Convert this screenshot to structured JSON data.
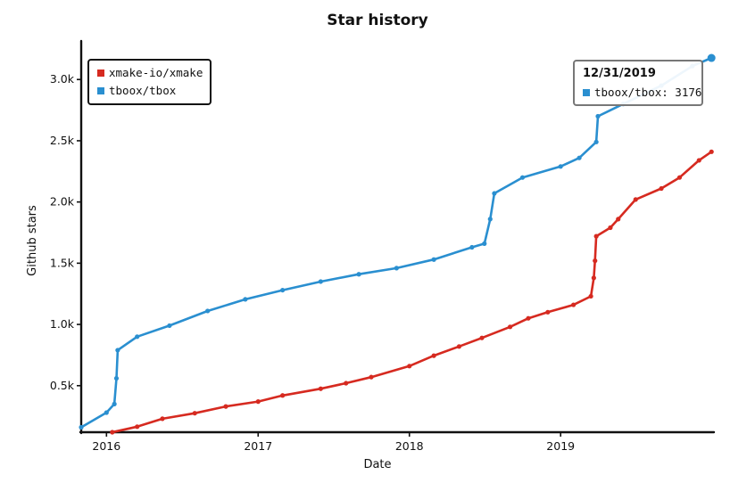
{
  "chart_data": {
    "type": "line",
    "title": "Star history",
    "xlabel": "Date",
    "ylabel": "Github stars",
    "x_ticks": [
      "2016",
      "2017",
      "2018",
      "2019"
    ],
    "y_ticks": [
      "0.5k",
      "1.0k",
      "1.5k",
      "2.0k",
      "2.5k",
      "3.0k"
    ],
    "xlim": [
      "2015-11-01",
      "2020-01-06"
    ],
    "ylim": [
      120,
      3300
    ],
    "legend_position": "top-left",
    "grid": false,
    "series": [
      {
        "name": "xmake-io/xmake",
        "color": "#d62a20",
        "points": [
          [
            "2016-01-15",
            120
          ],
          [
            "2016-03-15",
            165
          ],
          [
            "2016-05-15",
            230
          ],
          [
            "2016-08-01",
            275
          ],
          [
            "2016-10-15",
            330
          ],
          [
            "2017-01-01",
            370
          ],
          [
            "2017-03-01",
            420
          ],
          [
            "2017-06-01",
            475
          ],
          [
            "2017-08-01",
            520
          ],
          [
            "2017-10-01",
            570
          ],
          [
            "2018-01-01",
            660
          ],
          [
            "2018-03-01",
            745
          ],
          [
            "2018-05-01",
            820
          ],
          [
            "2018-06-25",
            890
          ],
          [
            "2018-09-01",
            980
          ],
          [
            "2018-10-15",
            1050
          ],
          [
            "2018-12-01",
            1100
          ],
          [
            "2019-02-01",
            1160
          ],
          [
            "2019-03-15",
            1230
          ],
          [
            "2019-03-22",
            1380
          ],
          [
            "2019-03-25",
            1520
          ],
          [
            "2019-03-28",
            1720
          ],
          [
            "2019-05-01",
            1790
          ],
          [
            "2019-05-20",
            1860
          ],
          [
            "2019-07-01",
            2020
          ],
          [
            "2019-09-01",
            2110
          ],
          [
            "2019-10-15",
            2200
          ],
          [
            "2019-12-01",
            2340
          ],
          [
            "2019-12-31",
            2410
          ]
        ]
      },
      {
        "name": "tboox/tbox",
        "color": "#2a8fd0",
        "points": [
          [
            "2015-11-01",
            160
          ],
          [
            "2016-01-01",
            280
          ],
          [
            "2016-01-20",
            350
          ],
          [
            "2016-01-25",
            560
          ],
          [
            "2016-01-28",
            790
          ],
          [
            "2016-03-15",
            900
          ],
          [
            "2016-06-01",
            990
          ],
          [
            "2016-09-01",
            1110
          ],
          [
            "2016-12-01",
            1205
          ],
          [
            "2017-03-01",
            1280
          ],
          [
            "2017-06-01",
            1350
          ],
          [
            "2017-09-01",
            1410
          ],
          [
            "2017-12-01",
            1460
          ],
          [
            "2018-03-01",
            1530
          ],
          [
            "2018-06-01",
            1630
          ],
          [
            "2018-07-01",
            1660
          ],
          [
            "2018-07-15",
            1860
          ],
          [
            "2018-07-25",
            2070
          ],
          [
            "2018-10-01",
            2200
          ],
          [
            "2019-01-01",
            2290
          ],
          [
            "2019-02-15",
            2360
          ],
          [
            "2019-03-28",
            2490
          ],
          [
            "2019-04-01",
            2700
          ],
          [
            "2019-06-01",
            2800
          ],
          [
            "2019-09-01",
            2950
          ],
          [
            "2019-11-15",
            3110
          ],
          [
            "2019-12-31",
            3176
          ]
        ]
      }
    ],
    "tooltip": {
      "title": "12/31/2019",
      "label": "tboox/tbox: 3176"
    }
  }
}
